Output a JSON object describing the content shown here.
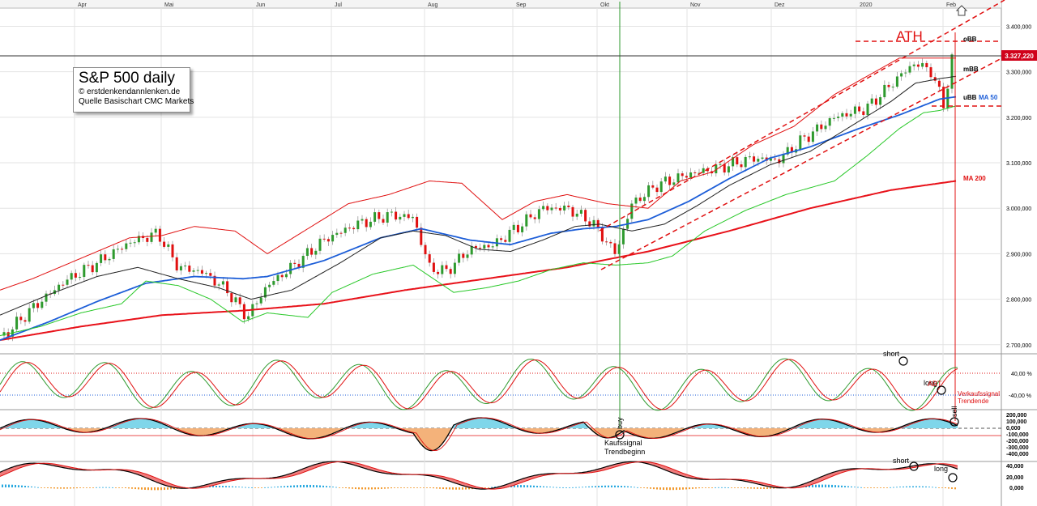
{
  "chart_data": {
    "type": "candlestick",
    "title": "S&P 500 daily",
    "credits": [
      "© erstdenkendannlenken.de",
      "Quelle Basischart CMC Markets"
    ],
    "price_axis": {
      "ticks": [
        "3.400,000",
        "3.300,000",
        "3.200,000",
        "3.100,000",
        "3.000,000",
        "2.900,000",
        "2.800,000",
        "2.700,000"
      ],
      "ylim": [
        2680,
        3440
      ],
      "current_price_label": "3.327,220",
      "current_price": 3327.22
    },
    "months": [
      "Apr",
      "Mai",
      "Jun",
      "Jul",
      "Aug",
      "Sep",
      "Okt",
      "Nov",
      "Dez",
      "2020",
      "Feb"
    ],
    "month_x": [
      92,
      199,
      312,
      409,
      524,
      633,
      737,
      848,
      952,
      1057,
      1164
    ],
    "series_labels": {
      "obb": "oBB",
      "mbb": "mBB",
      "ubb": "uBB",
      "ma50": "MA 50",
      "ma200": "MA 200",
      "ath": "ATH"
    },
    "series": [
      {
        "name": "MA 200",
        "color": "#e8121a",
        "points": [
          [
            0,
            2710
          ],
          [
            100,
            2740
          ],
          [
            200,
            2765
          ],
          [
            300,
            2775
          ],
          [
            400,
            2790
          ],
          [
            500,
            2820
          ],
          [
            600,
            2845
          ],
          [
            700,
            2870
          ],
          [
            800,
            2905
          ],
          [
            900,
            2950
          ],
          [
            1000,
            3000
          ],
          [
            1100,
            3040
          ],
          [
            1180,
            3060
          ]
        ]
      },
      {
        "name": "MA 50",
        "color": "#1d5ed8",
        "points": [
          [
            0,
            2710
          ],
          [
            60,
            2750
          ],
          [
            120,
            2795
          ],
          [
            180,
            2835
          ],
          [
            240,
            2850
          ],
          [
            300,
            2845
          ],
          [
            330,
            2850
          ],
          [
            400,
            2885
          ],
          [
            470,
            2935
          ],
          [
            520,
            2955
          ],
          [
            580,
            2930
          ],
          [
            630,
            2920
          ],
          [
            680,
            2945
          ],
          [
            720,
            2955
          ],
          [
            760,
            2960
          ],
          [
            800,
            2975
          ],
          [
            850,
            3015
          ],
          [
            900,
            3065
          ],
          [
            950,
            3110
          ],
          [
            1000,
            3135
          ],
          [
            1060,
            3175
          ],
          [
            1110,
            3205
          ],
          [
            1160,
            3240
          ],
          [
            1180,
            3245
          ]
        ]
      },
      {
        "name": "mBB",
        "color": "#222222",
        "points": [
          [
            0,
            2765
          ],
          [
            60,
            2810
          ],
          [
            120,
            2850
          ],
          [
            170,
            2870
          ],
          [
            220,
            2845
          ],
          [
            270,
            2825
          ],
          [
            310,
            2800
          ],
          [
            360,
            2820
          ],
          [
            420,
            2880
          ],
          [
            470,
            2935
          ],
          [
            510,
            2950
          ],
          [
            550,
            2940
          ],
          [
            590,
            2910
          ],
          [
            630,
            2905
          ],
          [
            670,
            2930
          ],
          [
            710,
            2960
          ],
          [
            740,
            2965
          ],
          [
            780,
            2950
          ],
          [
            820,
            2965
          ],
          [
            860,
            3005
          ],
          [
            900,
            3050
          ],
          [
            950,
            3095
          ],
          [
            1000,
            3125
          ],
          [
            1050,
            3180
          ],
          [
            1100,
            3235
          ],
          [
            1130,
            3275
          ],
          [
            1160,
            3285
          ],
          [
            1180,
            3290
          ]
        ]
      },
      {
        "name": "oBB",
        "color": "#e01010",
        "points": [
          [
            0,
            2820
          ],
          [
            40,
            2845
          ],
          [
            100,
            2890
          ],
          [
            160,
            2935
          ],
          [
            200,
            2940
          ],
          [
            240,
            2960
          ],
          [
            290,
            2950
          ],
          [
            330,
            2900
          ],
          [
            380,
            2955
          ],
          [
            430,
            3010
          ],
          [
            480,
            3030
          ],
          [
            530,
            3060
          ],
          [
            570,
            3055
          ],
          [
            620,
            2975
          ],
          [
            660,
            3015
          ],
          [
            700,
            3030
          ],
          [
            750,
            3010
          ],
          [
            800,
            3000
          ],
          [
            840,
            3060
          ],
          [
            880,
            3080
          ],
          [
            930,
            3140
          ],
          [
            980,
            3180
          ],
          [
            1030,
            3250
          ],
          [
            1080,
            3300
          ],
          [
            1110,
            3330
          ],
          [
            1140,
            3330
          ],
          [
            1170,
            3330
          ],
          [
            1180,
            3330
          ]
        ]
      },
      {
        "name": "uBB",
        "color": "#28c828",
        "points": [
          [
            0,
            2720
          ],
          [
            50,
            2740
          ],
          [
            100,
            2770
          ],
          [
            150,
            2790
          ],
          [
            180,
            2840
          ],
          [
            220,
            2830
          ],
          [
            260,
            2800
          ],
          [
            300,
            2750
          ],
          [
            330,
            2770
          ],
          [
            380,
            2760
          ],
          [
            410,
            2815
          ],
          [
            460,
            2855
          ],
          [
            510,
            2875
          ],
          [
            560,
            2815
          ],
          [
            600,
            2825
          ],
          [
            640,
            2840
          ],
          [
            680,
            2865
          ],
          [
            720,
            2880
          ],
          [
            760,
            2875
          ],
          [
            800,
            2880
          ],
          [
            830,
            2895
          ],
          [
            870,
            2950
          ],
          [
            920,
            2995
          ],
          [
            970,
            3030
          ],
          [
            1030,
            3060
          ],
          [
            1070,
            3115
          ],
          [
            1110,
            3175
          ],
          [
            1140,
            3210
          ],
          [
            1160,
            3215
          ],
          [
            1180,
            3225
          ]
        ]
      },
      {
        "name": "Price",
        "color": "#555555",
        "points": [
          [
            5,
            2720
          ],
          [
            40,
            2780
          ],
          [
            80,
            2840
          ],
          [
            120,
            2880
          ],
          [
            160,
            2925
          ],
          [
            195,
            2945
          ],
          [
            220,
            2870
          ],
          [
            250,
            2860
          ],
          [
            280,
            2820
          ],
          [
            305,
            2760
          ],
          [
            330,
            2830
          ],
          [
            360,
            2870
          ],
          [
            400,
            2930
          ],
          [
            440,
            2965
          ],
          [
            480,
            2985
          ],
          [
            510,
            2980
          ],
          [
            530,
            2870
          ],
          [
            550,
            2860
          ],
          [
            580,
            2910
          ],
          [
            610,
            2920
          ],
          [
            640,
            2960
          ],
          [
            670,
            3000
          ],
          [
            700,
            3000
          ],
          [
            730,
            2970
          ],
          [
            760,
            2900
          ],
          [
            780,
            3010
          ],
          [
            810,
            3050
          ],
          [
            850,
            3075
          ],
          [
            890,
            3090
          ],
          [
            930,
            3110
          ],
          [
            960,
            3105
          ],
          [
            990,
            3150
          ],
          [
            1030,
            3200
          ],
          [
            1070,
            3220
          ],
          [
            1110,
            3290
          ],
          [
            1130,
            3320
          ],
          [
            1150,
            3300
          ],
          [
            1165,
            3225
          ],
          [
            1175,
            3327
          ]
        ]
      }
    ],
    "stochastic": {
      "labels": [
        "40,00 %",
        "-40,00 %"
      ],
      "annotations": [
        "short",
        "long",
        "ABT",
        "Verkaufssignal",
        "Trendende"
      ]
    },
    "macd_panel": {
      "labels": [
        "200,000",
        "100,000",
        "0,000",
        "-100,000",
        "-200,000",
        "-300,000",
        "-400,000"
      ],
      "annotations": [
        "buy",
        "sell",
        "Kaufssignal",
        "Trendbeginn"
      ]
    },
    "momentum_panel": {
      "labels": [
        "40,000",
        "20,000",
        "0,000"
      ],
      "annotations": [
        "short",
        "long"
      ]
    }
  }
}
